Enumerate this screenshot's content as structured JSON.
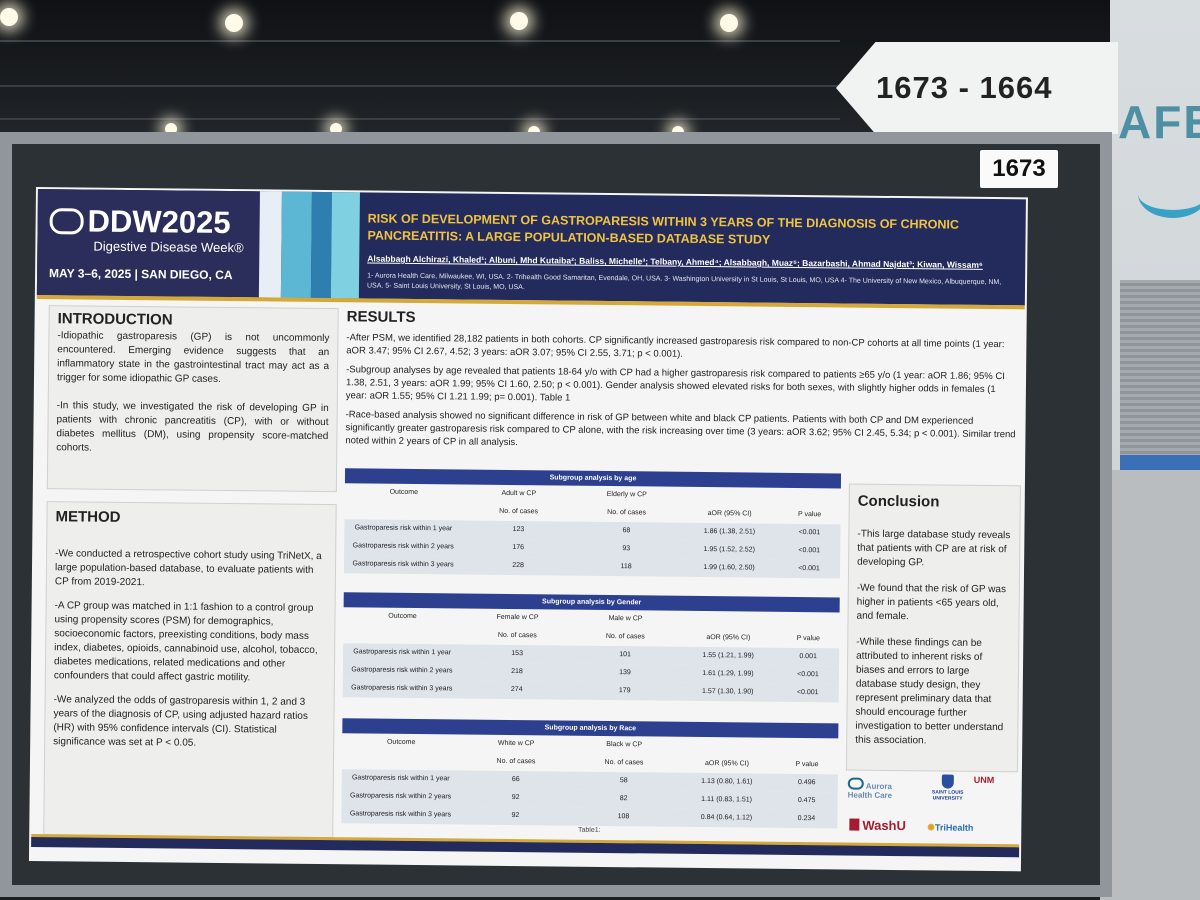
{
  "sign": {
    "text": "1673 - 1664"
  },
  "cafe_sign": "AFE",
  "board_number": "1673",
  "poster": {
    "brand": "DDW2025",
    "brand_sub": "Digestive Disease Week®",
    "dates": "MAY 3–6, 2025 | SAN DIEGO, CA",
    "title": "RISK OF DEVELOPMENT OF GASTROPARESIS WITHIN 3 YEARS OF THE DIAGNOSIS OF CHRONIC PANCREATITIS: A LARGE POPULATION-BASED DATABASE STUDY",
    "authors": "Alsabbagh Alchirazi, Khaled¹; Albuni, Mhd Kutaiba²; Baliss, Michelle³; Telbany, Ahmed⁴; Alsabbagh, Muaz⁵; Bazarbashi, Ahmad Najdat³; Kiwan, Wissam⁶",
    "affiliations": "1- Aurora Health Care, Milwaukee, WI, USA. 2- Trihealth Good Samaritan, Evendale, OH, USA. 3- Washington University in St Louis, St Louis, MO, USA 4- The University of New Mexico, Albuquerque, NM, USA. 5- Saint Louis University, St Louis, MO, USA.",
    "introduction": {
      "heading": "INTRODUCTION",
      "p1": "-Idiopathic gastroparesis (GP) is not uncommonly encountered. Emerging evidence suggests that an inflammatory state in the gastrointestinal tract may act as a trigger for some idiopathic GP cases.",
      "p2": "-In this study, we investigated the risk of developing GP in patients with chronic pancreatitis (CP), with or without diabetes mellitus (DM), using propensity score-matched cohorts."
    },
    "method": {
      "heading": "METHOD",
      "p1": "-We conducted a retrospective cohort study using TriNetX, a large population-based database, to evaluate patients with CP from 2019-2021.",
      "p2": "-A CP group was matched in 1:1 fashion to a control group using propensity scores (PSM) for demographics, socioeconomic factors, preexisting conditions, body mass index, diabetes, opioids, cannabinoid use, alcohol, tobacco, diabetes medications, related medications and other confounders that could affect gastric motility.",
      "p3": "-We analyzed the odds of gastroparesis within 1, 2 and 3 years of the diagnosis of CP, using adjusted hazard ratios (HR) with 95% confidence intervals (CI). Statistical significance was set at P < 0.05."
    },
    "results": {
      "heading": "RESULTS",
      "p1": "-After PSM, we identified 28,182 patients in both cohorts. CP significantly increased gastroparesis risk compared to non-CP cohorts at all time points (1 year: aOR 3.47; 95% CI 2.67, 4.52; 3 years: aOR 3.07; 95% CI 2.55, 3.71; p < 0.001).",
      "p2": "-Subgroup analyses by age revealed that  patients 18-64 y/o with CP had a higher gastroparesis risk compared to patients ≥65 y/o (1 year: aOR 1.86; 95% CI 1.38, 2.51, 3 years: aOR 1.99; 95% CI 1.60, 2.50; p < 0.001). Gender analysis showed elevated risks for both sexes, with slightly higher odds in females (1 year: aOR 1.55; 95% CI 1.21 1.99; p= 0.001). Table 1",
      "p3": "-Race-based analysis showed no significant difference in risk of GP between white and black CP patients. Patients with both CP and DM experienced significantly greater gastroparesis risk compared to CP alone, with the risk increasing over time (3 years: aOR 3.62; 95% CI 2.45, 5.34; p < 0.001). Similar trend noted within 2 years of CP in all analysis."
    },
    "tables": [
      {
        "title": "Subgroup analysis by age",
        "headers": [
          "Outcome",
          "Adult w CP",
          "Elderly w CP",
          "",
          ""
        ],
        "subheaders": [
          "",
          "No. of cases",
          "No. of cases",
          "aOR (95% CI)",
          "P value"
        ],
        "rows": [
          [
            "Gastroparesis risk within 1 year",
            "123",
            "68",
            "1.86 (1.38, 2.51)",
            "<0.001"
          ],
          [
            "Gastroparesis risk within 2 years",
            "176",
            "93",
            "1.95 (1.52, 2.52)",
            "<0.001"
          ],
          [
            "Gastroparesis risk within 3 years",
            "228",
            "118",
            "1.99 (1.60, 2.50)",
            "<0.001"
          ]
        ]
      },
      {
        "title": "Subgroup analysis by Gender",
        "headers": [
          "Outcome",
          "Female w CP",
          "Male w CP",
          "",
          ""
        ],
        "subheaders": [
          "",
          "No. of cases",
          "No. of cases",
          "aOR (95% CI)",
          "P value"
        ],
        "rows": [
          [
            "Gastroparesis risk within 1 year",
            "153",
            "101",
            "1.55 (1.21, 1.99)",
            "0.001"
          ],
          [
            "Gastroparesis risk within 2 years",
            "218",
            "139",
            "1.61 (1.29, 1.99)",
            "<0.001"
          ],
          [
            "Gastroparesis risk within 3 years",
            "274",
            "179",
            "1.57 (1.30, 1.90)",
            "<0.001"
          ]
        ]
      },
      {
        "title": "Subgroup analysis by Race",
        "headers": [
          "Outcome",
          "White w CP",
          "Black w CP",
          "",
          ""
        ],
        "subheaders": [
          "",
          "No. of cases",
          "No. of cases",
          "aOR (95% CI)",
          "P value"
        ],
        "rows": [
          [
            "Gastroparesis risk within 1 year",
            "66",
            "58",
            "1.13 (0.80, 1.61)",
            "0.496"
          ],
          [
            "Gastroparesis risk within 2 years",
            "92",
            "82",
            "1.11 (0.83, 1.51)",
            "0.475"
          ],
          [
            "Gastroparesis risk within 3 years",
            "92",
            "108",
            "0.84 (0.64, 1.12)",
            "0.234"
          ]
        ]
      }
    ],
    "table_caption": "Table1:",
    "conclusion": {
      "heading": "Conclusion",
      "p1": "-This large database study reveals that patients with CP are at risk of developing GP.",
      "p2": "-We found that the risk of GP was higher in patients <65 years old, and female.",
      "p3": "-While these findings can be attributed to inherent risks of biases and errors to large database study design, they represent preliminary data that should encourage further investigation to better understand this association."
    },
    "logos": {
      "aurora": "Aurora Health Care",
      "slu": "SAINT LOUIS UNIVERSITY",
      "unm": "UNM",
      "washu": "WashU",
      "trihealth": "TriHealth"
    }
  }
}
